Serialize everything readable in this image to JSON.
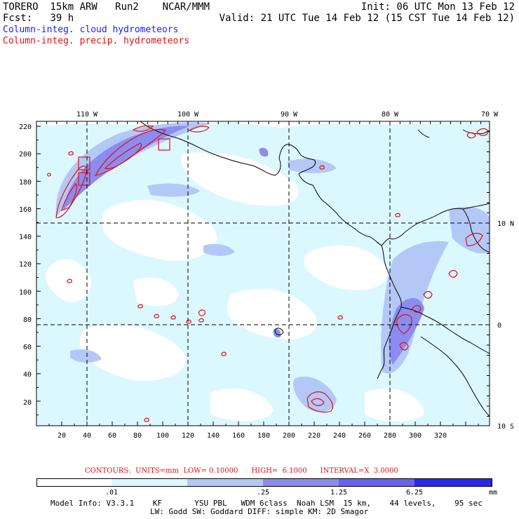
{
  "header": {
    "model": "TORERO  15km ARW   Run2    NCAR/MMM",
    "init": "Init: 06 UTC Mon 13 Feb 12",
    "fcst": "Fcst:   39 h",
    "valid": "Valid: 21 UTC Tue 14 Feb 12 (15 CST Tue 14 Feb 12)",
    "legend_cloud": "Column-integ. cloud hydrometeors",
    "legend_precip": "Column-integ. precip. hydrometeors"
  },
  "colors": {
    "cloud_levels": [
      "#ffffff",
      "#dcf8ff",
      "#b4c8f8",
      "#8c8cf0",
      "#6464f0",
      "#2828f0"
    ],
    "precip_contour": "#e01010",
    "coastline": "#000000"
  },
  "map": {
    "top_labels": [
      "110 W",
      "100 W",
      "90 W",
      "80 W",
      "70 W"
    ],
    "left_labels": [
      "220",
      "200",
      "180",
      "160",
      "140",
      "120",
      "100",
      "80",
      "60",
      "40",
      "20"
    ],
    "bottom_labels": [
      "20",
      "40",
      "60",
      "80",
      "100",
      "120",
      "140",
      "160",
      "180",
      "200",
      "220",
      "240",
      "260",
      "280",
      "300",
      "320"
    ],
    "right_labels": [
      "10 N",
      "0",
      "10 S"
    ]
  },
  "colorbar": {
    "contours_text": "CONTOURS:  UNITS=mm  LOW= 0.10000      HIGH=  6.1000      INTERVAL=X  3.0000",
    "labels": [
      ".01",
      ".25",
      "1.25",
      "6.25"
    ],
    "unit": "mm"
  },
  "footer": {
    "line1": "Model Info: V3.3.1    KF       YSU PBL   WDM 6class  Noah LSM  15 km,    44 levels,    95 sec",
    "line2": "LW: Godd SW: Goddard DIFF: simple KM: 2D Smagor"
  }
}
